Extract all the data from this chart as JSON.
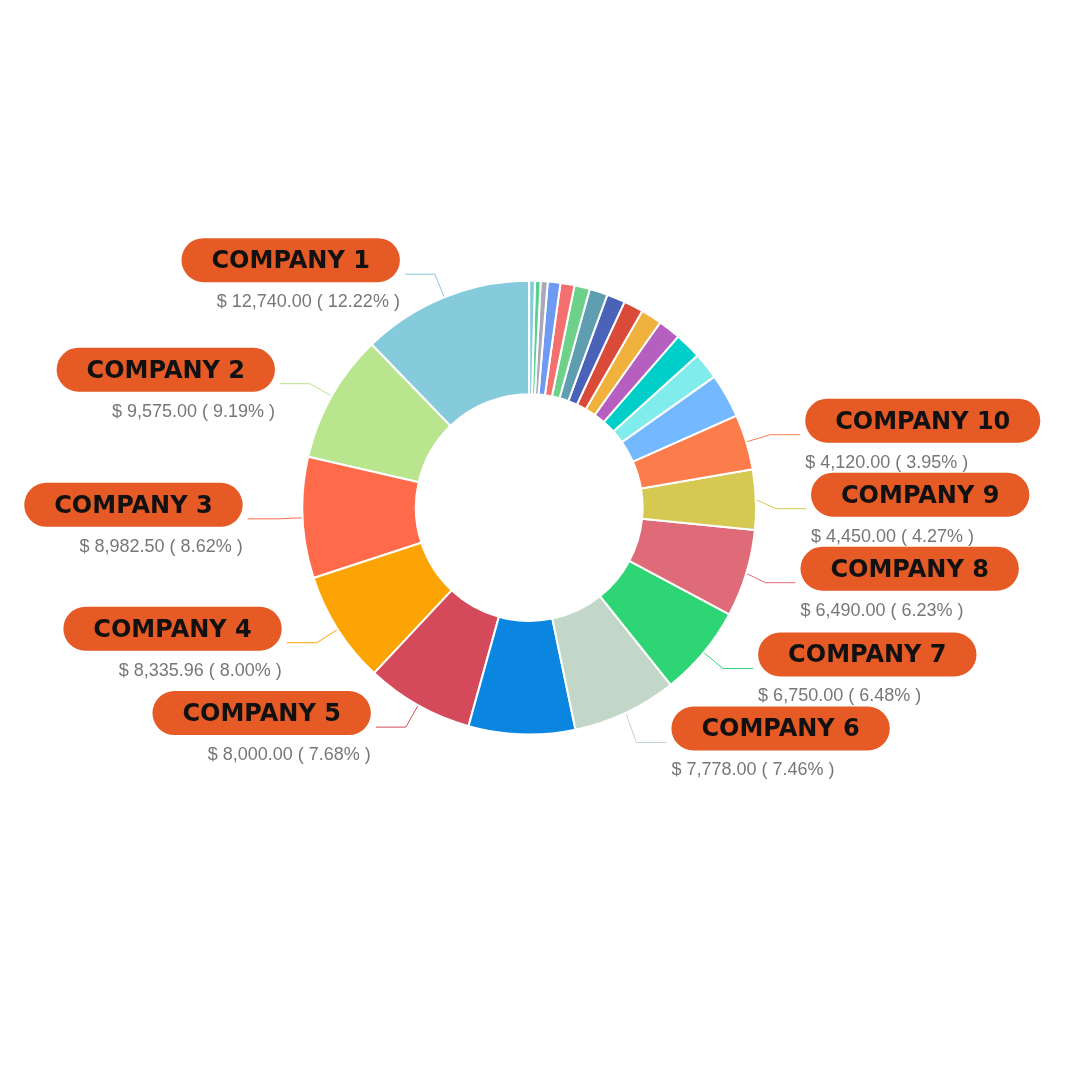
{
  "chart_data": {
    "type": "donut",
    "categories": [
      "COMPANY 1",
      "COMPANY 2",
      "COMPANY 3",
      "COMPANY 4",
      "COMPANY 5",
      null,
      "COMPANY 6",
      "COMPANY 7",
      "COMPANY 8",
      "COMPANY 9",
      "COMPANY 10",
      null,
      null,
      null,
      null,
      null,
      null,
      null,
      null,
      null,
      null,
      null,
      null,
      null,
      null
    ],
    "values": [
      12740,
      9575,
      8982.5,
      8335.96,
      8000,
      7904,
      7778,
      6750,
      6490,
      4450,
      4120,
      3280,
      1990,
      1970,
      1670,
      1560,
      1460,
      1360,
      1350,
      1150,
      1040,
      940,
      520,
      420,
      420
    ],
    "colors": [
      "#86cbdc",
      "#b9e58f",
      "#fe6a4a",
      "#fca404",
      "#d54a5b",
      "#0b86e0",
      "#c3d7c9",
      "#2ed574",
      "#df6b78",
      "#d5c951",
      "#fd7c4b",
      "#74b9ff",
      "#81ecec",
      "#00cec9",
      "#b55fc0",
      "#f0b23c",
      "#d94a38",
      "#4a63b8",
      "#5f9eb0",
      "#6dd18a",
      "#f4706f",
      "#6f9af2",
      "#a9a9b8",
      "#55d28e",
      "#86cbdc"
    ],
    "value_labels": [
      "$ 12,740.00 ( 12.22% )",
      "$ 9,575.00 ( 9.19% )",
      "$ 8,982.50 ( 8.62% )",
      "$ 8,335.96 ( 8.00% )",
      "$ 8,000.00 ( 7.68% )",
      null,
      "$ 7,778.00 ( 7.46% )",
      "$ 6,750.00 ( 6.48% )",
      "$ 6,490.00 ( 6.23% )",
      "$ 4,450.00 ( 4.27% )",
      "$ 4,120.00 ( 3.95% )",
      null,
      null,
      null,
      null,
      null,
      null,
      null,
      null,
      null,
      null,
      null,
      null,
      null,
      null
    ]
  }
}
